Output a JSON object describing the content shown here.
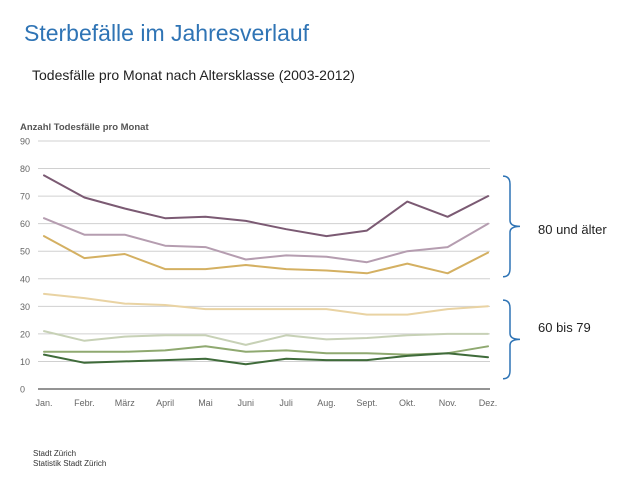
{
  "title": "Sterbefälle im Jahresverlauf",
  "subtitle": "Todesfälle pro Monat nach Altersklasse (2003-2012)",
  "footer": {
    "line1": "Stadt Zürich",
    "line2": "Statistik Stadt Zürich"
  },
  "annotations": {
    "upper_group": "80 und älter",
    "lower_group": "60 bis 79"
  },
  "chart_data": {
    "type": "line",
    "ylabel": "Anzahl Todesfälle pro Monat",
    "xlabel": "",
    "ylim": [
      0,
      90
    ],
    "yticks": [
      0,
      10,
      20,
      30,
      40,
      50,
      60,
      70,
      80,
      90
    ],
    "grid": true,
    "categories": [
      "Jan.",
      "Febr.",
      "März",
      "April",
      "Mai",
      "Juni",
      "Juli",
      "Aug.",
      "Sept.",
      "Okt.",
      "Nov.",
      "Dez."
    ],
    "series": [
      {
        "color": "#7b5a73",
        "group": "upper",
        "values": [
          77.5,
          69.5,
          65.5,
          62,
          62.5,
          61,
          58,
          55.5,
          57.5,
          68,
          62.5,
          70
        ]
      },
      {
        "color": "#b59db0",
        "group": "upper",
        "values": [
          62,
          56,
          56,
          52,
          51.5,
          47,
          48.5,
          48,
          46,
          50,
          51.5,
          60
        ]
      },
      {
        "color": "#d4b062",
        "group": "upper",
        "values": [
          55.5,
          47.5,
          49,
          43.5,
          43.5,
          45,
          43.5,
          43,
          42,
          45.5,
          42,
          49.5
        ]
      },
      {
        "color": "#e9d3a3",
        "group": "lower",
        "values": [
          34.5,
          33,
          31,
          30.5,
          29,
          29,
          29,
          29,
          27,
          27,
          29,
          30
        ]
      },
      {
        "color": "#c7d1b6",
        "group": "lower",
        "values": [
          21,
          17.5,
          19,
          19.5,
          19.5,
          16,
          19.5,
          18,
          18.5,
          19.5,
          20,
          20
        ]
      },
      {
        "color": "#8fa970",
        "group": "lower",
        "values": [
          13.5,
          13.5,
          13.5,
          14,
          15.5,
          13.5,
          14,
          13,
          13,
          12.5,
          13,
          15.5
        ]
      },
      {
        "color": "#3f6b3a",
        "group": "lower",
        "values": [
          12.5,
          9.5,
          10,
          10.5,
          11,
          9,
          11,
          10.5,
          10.5,
          12,
          13,
          11.5
        ]
      }
    ]
  }
}
